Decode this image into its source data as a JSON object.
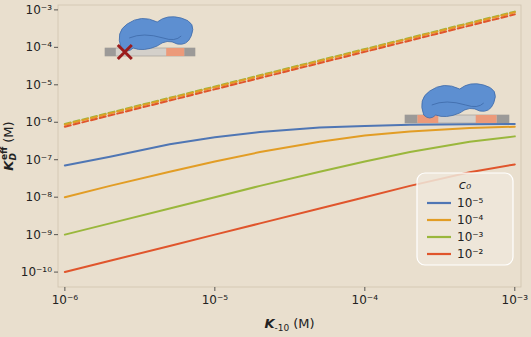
{
  "chart_data": {
    "type": "line",
    "log": true,
    "grid": false,
    "legend": "lower-right",
    "legend_title": "c₀",
    "xlabel": {
      "symbol": "K",
      "subscript": "-10",
      "unit": "(M)"
    },
    "ylabel": {
      "symbol": "K",
      "subscript": "D",
      "superscript": "eff",
      "unit": "(M)"
    },
    "xlim": [
      9e-07,
      0.0011
    ],
    "ylim": [
      4e-11,
      0.00135
    ],
    "xticks": [
      {
        "value": 1e-06,
        "label": "10⁻⁶"
      },
      {
        "value": 1e-05,
        "label": "10⁻⁵"
      },
      {
        "value": 0.0001,
        "label": "10⁻⁴"
      },
      {
        "value": 0.001,
        "label": "10⁻³"
      }
    ],
    "yticks": [
      {
        "value": 1e-10,
        "label": "10⁻¹⁰"
      },
      {
        "value": 1e-09,
        "label": "10⁻⁹"
      },
      {
        "value": 1e-08,
        "label": "10⁻⁸"
      },
      {
        "value": 1e-07,
        "label": "10⁻⁷"
      },
      {
        "value": 1e-06,
        "label": "10⁻⁶"
      },
      {
        "value": 1e-05,
        "label": "10⁻⁵"
      },
      {
        "value": 0.0001,
        "label": "10⁻⁴"
      },
      {
        "value": 0.001,
        "label": "10⁻³"
      }
    ],
    "series": [
      {
        "name": "10⁻⁵",
        "color": "#4f76b4",
        "line_style": "solid",
        "x": [
          1e-06,
          2e-06,
          5e-06,
          1e-05,
          2e-05,
          5e-05,
          0.0001,
          0.0002,
          0.0005,
          0.001
        ],
        "values": [
          7e-08,
          1.2e-07,
          2.6e-07,
          4e-07,
          5.5e-07,
          7.2e-07,
          8e-07,
          8.6e-07,
          8.9e-07,
          9e-07
        ]
      },
      {
        "name": "10⁻⁴",
        "color": "#e29d25",
        "line_style": "solid",
        "x": [
          1e-06,
          2e-06,
          5e-06,
          1e-05,
          2e-05,
          5e-05,
          0.0001,
          0.0002,
          0.0005,
          0.001
        ],
        "values": [
          1e-08,
          2e-08,
          4.8e-08,
          9e-08,
          1.6e-07,
          3e-07,
          4.4e-07,
          5.7e-07,
          7e-07,
          7.6e-07
        ]
      },
      {
        "name": "10⁻³",
        "color": "#9ab73c",
        "line_style": "solid",
        "x": [
          1e-06,
          2e-06,
          5e-06,
          1e-05,
          2e-05,
          5e-05,
          0.0001,
          0.0002,
          0.0005,
          0.001
        ],
        "values": [
          1e-09,
          2e-09,
          5e-09,
          1e-08,
          2e-08,
          4.8e-08,
          9e-08,
          1.6e-07,
          3e-07,
          4.2e-07
        ]
      },
      {
        "name": "10⁻²",
        "color": "#e0552c",
        "line_style": "solid",
        "x": [
          1e-06,
          2e-06,
          5e-06,
          1e-05,
          2e-05,
          5e-05,
          0.0001,
          0.0002,
          0.0005,
          0.001
        ],
        "values": [
          1e-10,
          2e-10,
          5e-10,
          1e-09,
          2e-09,
          5e-09,
          1e-08,
          2e-08,
          4.6e-08,
          7.5e-08
        ]
      },
      {
        "color": "#9ab73c",
        "line_style": "dashed",
        "x": [
          1e-06,
          0.001
        ],
        "values": [
          9e-07,
          0.0009
        ]
      },
      {
        "color": "#e29d25",
        "line_style": "dashed",
        "x": [
          1e-06,
          0.001
        ],
        "values": [
          8.6e-07,
          0.00086
        ]
      },
      {
        "color": "#e0552c",
        "line_style": "dashed",
        "x": [
          1e-06,
          0.001
        ],
        "values": [
          7.6e-07,
          0.00076
        ]
      }
    ]
  }
}
